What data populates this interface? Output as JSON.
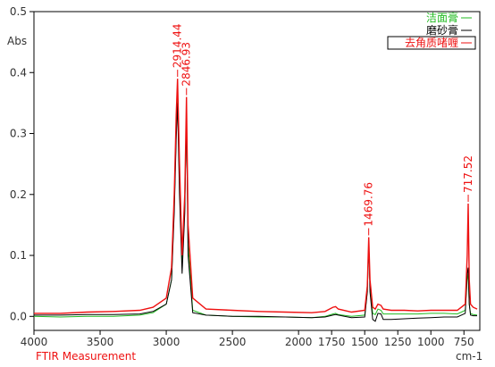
{
  "chart_data": {
    "type": "line",
    "y_label": "Abs",
    "x_label": "cm-1",
    "footer": "FTIR Measurement",
    "x": [
      4000,
      3800,
      3600,
      3400,
      3200,
      3100,
      3000,
      2960,
      2940,
      2925,
      2914.44,
      2900,
      2880,
      2860,
      2846.93,
      2835,
      2800,
      2700,
      2500,
      2300,
      2100,
      1900,
      1800,
      1740,
      1720,
      1700,
      1600,
      1500,
      1480,
      1469.76,
      1460,
      1440,
      1420,
      1400,
      1377,
      1360,
      1300,
      1200,
      1100,
      1000,
      900,
      800,
      740,
      725,
      717.52,
      710,
      700,
      680,
      650
    ],
    "series": [
      {
        "name": "洁面膏",
        "color": "#22bb22",
        "values": [
          0,
          -0.001,
          0,
          0,
          0.002,
          0.006,
          0.02,
          0.06,
          0.18,
          0.3,
          0.36,
          0.22,
          0.08,
          0.18,
          0.34,
          0.12,
          0.01,
          0.002,
          0,
          -0.001,
          -0.001,
          -0.002,
          0,
          0.004,
          0.005,
          0.003,
          0,
          0.002,
          0.04,
          0.12,
          0.05,
          0.005,
          0.003,
          0.012,
          0.01,
          0.004,
          0.004,
          0.004,
          0.004,
          0.005,
          0.005,
          0.004,
          0.01,
          0.06,
          0.07,
          0.02,
          0.005,
          0.003,
          0.002
        ]
      },
      {
        "name": "磨砂膏",
        "color": "#000000",
        "values": [
          0.002,
          0.002,
          0.003,
          0.003,
          0.004,
          0.008,
          0.02,
          0.06,
          0.17,
          0.29,
          0.35,
          0.2,
          0.07,
          0.17,
          0.33,
          0.1,
          0.006,
          0.002,
          0,
          0,
          -0.001,
          -0.002,
          -0.001,
          0.002,
          0.003,
          0.002,
          -0.002,
          -0.001,
          0.04,
          0.12,
          0.04,
          -0.005,
          -0.008,
          0.005,
          0.004,
          -0.005,
          -0.005,
          -0.004,
          -0.003,
          -0.002,
          -0.001,
          -0.001,
          0.005,
          0.07,
          0.08,
          0.02,
          0.002,
          0.001,
          0.001
        ]
      },
      {
        "name": "去角质啫喱",
        "color": "#ee1111",
        "values": [
          0.005,
          0.005,
          0.007,
          0.008,
          0.01,
          0.015,
          0.03,
          0.08,
          0.2,
          0.33,
          0.39,
          0.25,
          0.1,
          0.2,
          0.36,
          0.15,
          0.03,
          0.012,
          0.01,
          0.008,
          0.007,
          0.006,
          0.008,
          0.015,
          0.016,
          0.012,
          0.007,
          0.01,
          0.05,
          0.13,
          0.06,
          0.015,
          0.012,
          0.02,
          0.018,
          0.012,
          0.01,
          0.01,
          0.009,
          0.01,
          0.01,
          0.01,
          0.02,
          0.1,
          0.185,
          0.06,
          0.02,
          0.015,
          0.012
        ]
      }
    ],
    "annotations": [
      {
        "x": 2914.44
      },
      {
        "x": 2846.93
      },
      {
        "x": 1469.76
      },
      {
        "x": 717.52
      }
    ],
    "xlim": [
      4000,
      630
    ],
    "ylim": [
      -0.023,
      0.5
    ],
    "xticks": [
      4000,
      3500,
      3000,
      2500,
      2000,
      1750,
      1500,
      1250,
      1000,
      750
    ],
    "yticks": [
      {
        "value": 0,
        "label": "0.0"
      },
      0.1,
      0.2,
      0.3,
      0.4,
      0.5
    ],
    "legend": "top-right"
  }
}
